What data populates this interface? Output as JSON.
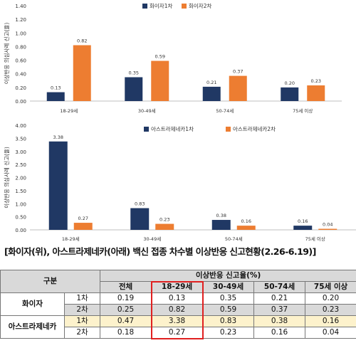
{
  "colors": {
    "dose1": "#203864",
    "dose2": "#ed7d31",
    "highlight_border": "#e02020",
    "table_header_bg": "#d9d9d9",
    "table_highlight_bg": "#fdf2cc"
  },
  "chart_data": [
    {
      "type": "bar",
      "categories": [
        "18-29세",
        "30-49세",
        "50-74세",
        "75세 이상"
      ],
      "series": [
        {
          "name": "화이자1차",
          "values": [
            0.13,
            0.35,
            0.21,
            0.2
          ],
          "value_labels": [
            "0.13",
            "0.35",
            "0.21",
            "0.20"
          ]
        },
        {
          "name": "화이자2차",
          "values": [
            0.82,
            0.59,
            0.37,
            0.23
          ],
          "value_labels": [
            "0.82",
            "0.59",
            "0.37",
            "0.23"
          ]
        }
      ],
      "ylabel": "이상반응 의심사례 신고(율)",
      "ylim": [
        0,
        1.4
      ],
      "yticks": [
        0.0,
        0.2,
        0.4,
        0.6,
        0.8,
        1.0,
        1.2,
        1.4
      ],
      "ytick_labels": [
        "0.00",
        "0.20",
        "0.40",
        "0.60",
        "0.80",
        "1.00",
        "1.20",
        "1.40"
      ],
      "legend": "top-center",
      "grid": false
    },
    {
      "type": "bar",
      "categories": [
        "18-29세",
        "30-49세",
        "50-74세",
        "75세 이상"
      ],
      "series": [
        {
          "name": "아스트라제네카1차",
          "values": [
            3.38,
            0.83,
            0.38,
            0.16
          ],
          "value_labels": [
            "3.38",
            "0.83",
            "0.38",
            "0.16"
          ]
        },
        {
          "name": "아스트라제네카2차",
          "values": [
            0.27,
            0.23,
            0.16,
            0.04
          ],
          "value_labels": [
            "0.27",
            "0.23",
            "0.16",
            "0.04"
          ]
        }
      ],
      "ylabel": "이상반응 의심사례 신고(율)",
      "ylim": [
        0,
        4.0
      ],
      "yticks": [
        0.0,
        0.5,
        1.0,
        1.5,
        2.0,
        2.5,
        3.0,
        3.5,
        4.0
      ],
      "ytick_labels": [
        "0.00",
        "0.50",
        "1.00",
        "1.50",
        "2.00",
        "2.50",
        "3.00",
        "3.50",
        "4.00"
      ],
      "legend": "top-center",
      "grid": false
    },
    {
      "type": "table",
      "caption": "[화이자(위), 아스트라제네카(아래) 백신 접종 차수별 이상반응 신고현황(2.26-6.19)]",
      "header": {
        "group_label": "구분",
        "span_label": "이상반응 신고율(%)",
        "columns": [
          "전체",
          "18-29세",
          "30-49세",
          "50-74세",
          "75세 이상"
        ]
      },
      "groups": [
        {
          "name": "화이자",
          "rows": [
            {
              "dose": "1차",
              "values": [
                "0.19",
                "0.13",
                "0.35",
                "0.21",
                "0.20"
              ]
            },
            {
              "dose": "2차",
              "values": [
                "0.25",
                "0.82",
                "0.59",
                "0.37",
                "0.23"
              ]
            }
          ]
        },
        {
          "name": "아스트라제네카",
          "rows": [
            {
              "dose": "1차",
              "values": [
                "0.47",
                "3.38",
                "0.83",
                "0.38",
                "0.16"
              ]
            },
            {
              "dose": "2차",
              "values": [
                "0.18",
                "0.27",
                "0.23",
                "0.16",
                "0.04"
              ]
            }
          ]
        }
      ],
      "highlighted_column": "18-29세"
    }
  ]
}
